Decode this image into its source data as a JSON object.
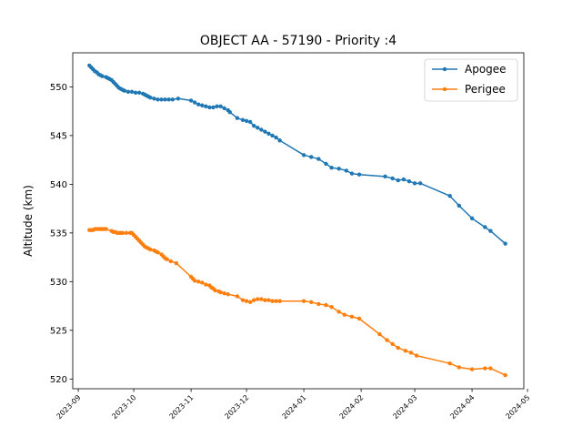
{
  "chart_data": {
    "type": "line",
    "title": "OBJECT AA - 57190 - Priority :4",
    "xlabel": "",
    "ylabel": "Altitude (km)",
    "x_axis_type": "date",
    "xlim": [
      "2023-08-29",
      "2024-04-29"
    ],
    "ylim": [
      519.0,
      553.5
    ],
    "xticks": [
      "2023-09",
      "2023-10",
      "2023-11",
      "2023-12",
      "2024-01",
      "2024-02",
      "2024-03",
      "2024-04",
      "2024-05"
    ],
    "yticks": [
      520,
      525,
      530,
      535,
      540,
      545,
      550
    ],
    "grid": false,
    "legend_position": "top-right",
    "series": [
      {
        "name": "Apogee",
        "color": "#1f77b4",
        "marker": "circle",
        "points": [
          [
            "2023-09-07",
            552.2
          ],
          [
            "2023-09-08",
            552.0
          ],
          [
            "2023-09-09",
            551.8
          ],
          [
            "2023-09-10",
            551.6
          ],
          [
            "2023-09-11",
            551.5
          ],
          [
            "2023-09-12",
            551.3
          ],
          [
            "2023-09-13",
            551.2
          ],
          [
            "2023-09-14",
            551.1
          ],
          [
            "2023-09-16",
            551.0
          ],
          [
            "2023-09-17",
            550.9
          ],
          [
            "2023-09-18",
            550.8
          ],
          [
            "2023-09-19",
            550.7
          ],
          [
            "2023-09-20",
            550.5
          ],
          [
            "2023-09-21",
            550.3
          ],
          [
            "2023-09-22",
            550.1
          ],
          [
            "2023-09-23",
            549.9
          ],
          [
            "2023-09-24",
            549.8
          ],
          [
            "2023-09-25",
            549.7
          ],
          [
            "2023-09-26",
            549.6
          ],
          [
            "2023-09-28",
            549.5
          ],
          [
            "2023-09-30",
            549.5
          ],
          [
            "2023-10-02",
            549.4
          ],
          [
            "2023-10-04",
            549.4
          ],
          [
            "2023-10-06",
            549.3
          ],
          [
            "2023-10-07",
            549.2
          ],
          [
            "2023-10-08",
            549.1
          ],
          [
            "2023-10-09",
            549.0
          ],
          [
            "2023-10-10",
            548.9
          ],
          [
            "2023-10-12",
            548.8
          ],
          [
            "2023-10-14",
            548.7
          ],
          [
            "2023-10-16",
            548.7
          ],
          [
            "2023-10-18",
            548.7
          ],
          [
            "2023-10-20",
            548.7
          ],
          [
            "2023-10-22",
            548.7
          ],
          [
            "2023-10-25",
            548.8
          ],
          [
            "2023-11-01",
            548.6
          ],
          [
            "2023-11-03",
            548.4
          ],
          [
            "2023-11-05",
            548.2
          ],
          [
            "2023-11-07",
            548.1
          ],
          [
            "2023-11-09",
            548.0
          ],
          [
            "2023-11-11",
            547.9
          ],
          [
            "2023-11-13",
            547.9
          ],
          [
            "2023-11-15",
            548.0
          ],
          [
            "2023-11-17",
            548.0
          ],
          [
            "2023-11-19",
            547.8
          ],
          [
            "2023-11-21",
            547.6
          ],
          [
            "2023-11-22",
            547.4
          ],
          [
            "2023-11-26",
            546.8
          ],
          [
            "2023-11-29",
            546.6
          ],
          [
            "2023-12-01",
            546.5
          ],
          [
            "2023-12-03",
            546.4
          ],
          [
            "2023-12-05",
            546.0
          ],
          [
            "2023-12-07",
            545.8
          ],
          [
            "2023-12-09",
            545.6
          ],
          [
            "2023-12-11",
            545.4
          ],
          [
            "2023-12-13",
            545.2
          ],
          [
            "2023-12-15",
            545.0
          ],
          [
            "2023-12-17",
            544.8
          ],
          [
            "2023-12-19",
            544.5
          ],
          [
            "2024-01-01",
            543.0
          ],
          [
            "2024-01-05",
            542.8
          ],
          [
            "2024-01-09",
            542.6
          ],
          [
            "2024-01-13",
            542.1
          ],
          [
            "2024-01-16",
            541.7
          ],
          [
            "2024-01-20",
            541.6
          ],
          [
            "2024-01-24",
            541.4
          ],
          [
            "2024-01-27",
            541.1
          ],
          [
            "2024-01-31",
            541.0
          ],
          [
            "2024-02-14",
            540.8
          ],
          [
            "2024-02-18",
            540.6
          ],
          [
            "2024-02-21",
            540.4
          ],
          [
            "2024-02-24",
            540.5
          ],
          [
            "2024-02-27",
            540.3
          ],
          [
            "2024-03-01",
            540.1
          ],
          [
            "2024-03-04",
            540.1
          ],
          [
            "2024-03-20",
            538.8
          ],
          [
            "2024-03-25",
            537.8
          ],
          [
            "2024-04-01",
            536.5
          ],
          [
            "2024-04-08",
            535.6
          ],
          [
            "2024-04-11",
            535.2
          ],
          [
            "2024-04-19",
            533.9
          ]
        ]
      },
      {
        "name": "Perigee",
        "color": "#ff7f0e",
        "marker": "circle",
        "points": [
          [
            "2023-09-07",
            535.3
          ],
          [
            "2023-09-08",
            535.3
          ],
          [
            "2023-09-09",
            535.3
          ],
          [
            "2023-09-10",
            535.4
          ],
          [
            "2023-09-11",
            535.4
          ],
          [
            "2023-09-12",
            535.4
          ],
          [
            "2023-09-13",
            535.4
          ],
          [
            "2023-09-14",
            535.4
          ],
          [
            "2023-09-15",
            535.4
          ],
          [
            "2023-09-16",
            535.4
          ],
          [
            "2023-09-19",
            535.2
          ],
          [
            "2023-09-20",
            535.1
          ],
          [
            "2023-09-21",
            535.1
          ],
          [
            "2023-09-22",
            535.0
          ],
          [
            "2023-09-23",
            535.0
          ],
          [
            "2023-09-24",
            535.0
          ],
          [
            "2023-09-25",
            535.0
          ],
          [
            "2023-09-27",
            535.0
          ],
          [
            "2023-09-29",
            535.0
          ],
          [
            "2023-09-30",
            535.0
          ],
          [
            "2023-10-01",
            534.8
          ],
          [
            "2023-10-02",
            534.6
          ],
          [
            "2023-10-03",
            534.4
          ],
          [
            "2023-10-04",
            534.2
          ],
          [
            "2023-10-05",
            534.0
          ],
          [
            "2023-10-06",
            533.8
          ],
          [
            "2023-10-07",
            533.6
          ],
          [
            "2023-10-08",
            533.5
          ],
          [
            "2023-10-09",
            533.4
          ],
          [
            "2023-10-10",
            533.3
          ],
          [
            "2023-10-12",
            533.2
          ],
          [
            "2023-10-13",
            533.1
          ],
          [
            "2023-10-14",
            533.0
          ],
          [
            "2023-10-16",
            532.8
          ],
          [
            "2023-10-17",
            532.6
          ],
          [
            "2023-10-18",
            532.4
          ],
          [
            "2023-10-19",
            532.3
          ],
          [
            "2023-10-21",
            532.1
          ],
          [
            "2023-10-24",
            531.9
          ],
          [
            "2023-11-01",
            530.5
          ],
          [
            "2023-11-02",
            530.3
          ],
          [
            "2023-11-03",
            530.1
          ],
          [
            "2023-11-05",
            530.0
          ],
          [
            "2023-11-07",
            529.9
          ],
          [
            "2023-11-09",
            529.7
          ],
          [
            "2023-11-11",
            529.6
          ],
          [
            "2023-11-12",
            529.4
          ],
          [
            "2023-11-13",
            529.3
          ],
          [
            "2023-11-14",
            529.1
          ],
          [
            "2023-11-16",
            529.0
          ],
          [
            "2023-11-17",
            528.9
          ],
          [
            "2023-11-19",
            528.8
          ],
          [
            "2023-11-21",
            528.7
          ],
          [
            "2023-11-26",
            528.5
          ],
          [
            "2023-11-29",
            528.1
          ],
          [
            "2023-12-01",
            528.0
          ],
          [
            "2023-12-03",
            527.9
          ],
          [
            "2023-12-05",
            528.1
          ],
          [
            "2023-12-07",
            528.2
          ],
          [
            "2023-12-09",
            528.2
          ],
          [
            "2023-12-11",
            528.1
          ],
          [
            "2023-12-13",
            528.1
          ],
          [
            "2023-12-15",
            528.0
          ],
          [
            "2023-12-17",
            528.0
          ],
          [
            "2023-12-19",
            528.0
          ],
          [
            "2024-01-01",
            528.0
          ],
          [
            "2024-01-05",
            527.9
          ],
          [
            "2024-01-09",
            527.7
          ],
          [
            "2024-01-13",
            527.6
          ],
          [
            "2024-01-16",
            527.4
          ],
          [
            "2024-01-20",
            526.9
          ],
          [
            "2024-01-23",
            526.6
          ],
          [
            "2024-01-27",
            526.4
          ],
          [
            "2024-01-31",
            526.2
          ],
          [
            "2024-02-11",
            524.6
          ],
          [
            "2024-02-15",
            524.0
          ],
          [
            "2024-02-18",
            523.6
          ],
          [
            "2024-02-21",
            523.2
          ],
          [
            "2024-02-25",
            522.9
          ],
          [
            "2024-02-28",
            522.7
          ],
          [
            "2024-03-02",
            522.4
          ],
          [
            "2024-03-20",
            521.6
          ],
          [
            "2024-03-25",
            521.2
          ],
          [
            "2024-04-01",
            521.0
          ],
          [
            "2024-04-08",
            521.1
          ],
          [
            "2024-04-11",
            521.1
          ],
          [
            "2024-04-19",
            520.4
          ]
        ]
      }
    ]
  }
}
